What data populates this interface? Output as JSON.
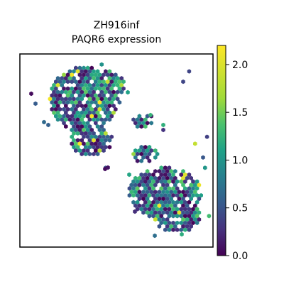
{
  "chart_data": {
    "type": "scatter",
    "title": "ZH916inf",
    "subtitle": "PAQR6 expression",
    "xlabel": "",
    "ylabel": "",
    "grid": false,
    "axes_ticks": false,
    "point_shape": "hexagon",
    "colormap": "viridis",
    "colorbar": {
      "min": 0.0,
      "max": 2.2,
      "ticks": [
        0.0,
        0.5,
        1.0,
        1.5,
        2.0
      ],
      "tick_labels": [
        "0.0",
        "0.5",
        "1.0",
        "1.5",
        "2.0"
      ],
      "placement": "right"
    },
    "regions": [
      {
        "name_shown": false,
        "extent": "upper-left cluster",
        "mean_value": 0.75
      },
      {
        "name_shown": false,
        "extent": "lower-right cluster",
        "mean_value": 0.7
      }
    ],
    "colors": {
      "low": "#440154",
      "mid": "#21918c",
      "high": "#fde725",
      "frame": "#000000"
    }
  }
}
